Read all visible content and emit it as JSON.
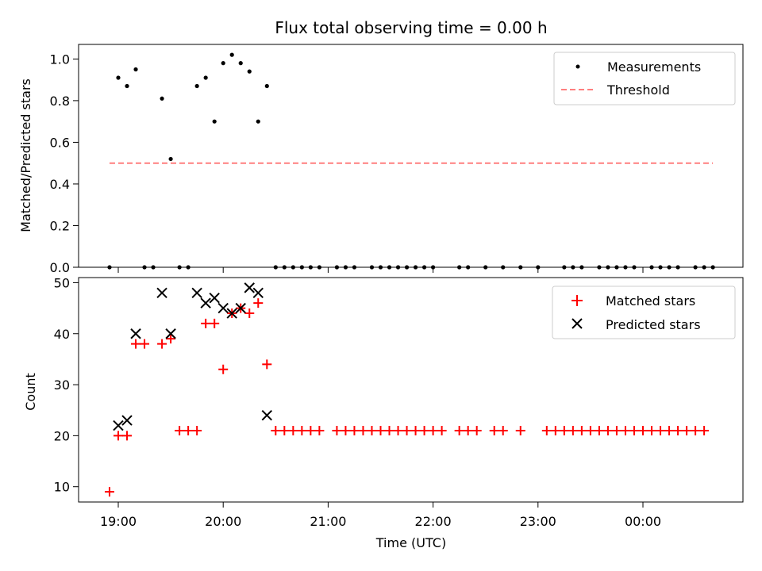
{
  "figure_title": "Flux total observing time = 0.00 h",
  "colors": {
    "measurement": "#000000",
    "threshold": "#ff7f7f",
    "matched": "#ff0000",
    "predicted": "#000000"
  },
  "chart_data": [
    {
      "type": "scatter",
      "ylabel": "Matched/Predicted stars",
      "xlabel": "",
      "ylim": [
        0,
        1.07
      ],
      "yticks": [
        "0.0",
        "0.2",
        "0.4",
        "0.6",
        "0.8",
        "1.0"
      ],
      "legend_position": "top-right",
      "series": [
        {
          "name": "Measurements",
          "marker": "dot",
          "x": [
            "18:55",
            "19:00",
            "19:05",
            "19:10",
            "19:15",
            "19:20",
            "19:25",
            "19:30",
            "19:35",
            "19:40",
            "19:45",
            "19:50",
            "19:55",
            "20:00",
            "20:05",
            "20:10",
            "20:15",
            "20:20",
            "20:25",
            "20:30",
            "20:35",
            "20:40",
            "20:45",
            "20:50",
            "20:55",
            "21:05",
            "21:10",
            "21:15",
            "21:25",
            "21:30",
            "21:35",
            "21:40",
            "21:45",
            "21:50",
            "21:55",
            "22:00",
            "22:15",
            "22:20",
            "22:30",
            "22:40",
            "22:50",
            "23:00",
            "23:15",
            "23:20",
            "23:25",
            "23:35",
            "23:40",
            "23:45",
            "23:50",
            "23:55",
            "00:05",
            "00:10",
            "00:15",
            "00:20",
            "00:30",
            "00:35",
            "00:40"
          ],
          "y": [
            0,
            0.91,
            0.87,
            0.95,
            0,
            0,
            0.81,
            0.52,
            0,
            0,
            0.87,
            0.91,
            0.7,
            0.98,
            1.02,
            0.98,
            0.94,
            0.7,
            0.87,
            0,
            0,
            0,
            0,
            0,
            0,
            0,
            0,
            0,
            0,
            0,
            0,
            0,
            0,
            0,
            0,
            0,
            0,
            0,
            0,
            0,
            0,
            0,
            0,
            0,
            0,
            0,
            0,
            0,
            0,
            0,
            0,
            0,
            0,
            0,
            0,
            0,
            0
          ]
        },
        {
          "name": "Threshold",
          "line": "dashed",
          "x": [
            "18:55",
            "00:40"
          ],
          "y": [
            0.5,
            0.5
          ]
        }
      ]
    },
    {
      "type": "scatter",
      "xlabel": "Time (UTC)",
      "ylabel": "Count",
      "ylim": [
        7,
        51
      ],
      "yticks": [
        "10",
        "20",
        "30",
        "40",
        "50"
      ],
      "xticks": [
        "19:00",
        "20:00",
        "21:00",
        "22:00",
        "23:00",
        "00:00"
      ],
      "legend_position": "top-right",
      "series": [
        {
          "name": "Matched stars",
          "marker": "plus",
          "x": [
            "18:55",
            "19:00",
            "19:05",
            "19:10",
            "19:15",
            "19:25",
            "19:30",
            "19:35",
            "19:40",
            "19:45",
            "19:50",
            "19:55",
            "20:00",
            "20:05",
            "20:10",
            "20:15",
            "20:20",
            "20:25",
            "20:30",
            "20:35",
            "20:40",
            "20:45",
            "20:50",
            "20:55",
            "21:05",
            "21:10",
            "21:15",
            "21:20",
            "21:25",
            "21:30",
            "21:35",
            "21:40",
            "21:45",
            "21:50",
            "21:55",
            "22:00",
            "22:05",
            "22:15",
            "22:20",
            "22:25",
            "22:35",
            "22:40",
            "22:50",
            "23:05",
            "23:10",
            "23:15",
            "23:20",
            "23:25",
            "23:30",
            "23:35",
            "23:40",
            "23:45",
            "23:50",
            "23:55",
            "00:00",
            "00:05",
            "00:10",
            "00:15",
            "00:20",
            "00:25",
            "00:30",
            "00:35"
          ],
          "y": [
            9,
            20,
            20,
            38,
            38,
            38,
            39,
            21,
            21,
            21,
            42,
            42,
            33,
            44,
            45,
            44,
            46,
            34,
            21,
            21,
            21,
            21,
            21,
            21,
            21,
            21,
            21,
            21,
            21,
            21,
            21,
            21,
            21,
            21,
            21,
            21,
            21,
            21,
            21,
            21,
            21,
            21,
            21,
            21,
            21,
            21,
            21,
            21,
            21,
            21,
            21,
            21,
            21,
            21,
            21,
            21,
            21,
            21,
            21,
            21,
            21,
            21
          ]
        },
        {
          "name": "Predicted stars",
          "marker": "x",
          "x": [
            "19:00",
            "19:05",
            "19:10",
            "19:25",
            "19:30",
            "19:45",
            "19:50",
            "19:55",
            "20:00",
            "20:05",
            "20:10",
            "20:15",
            "20:20",
            "20:25"
          ],
          "y": [
            22,
            23,
            40,
            48,
            40,
            48,
            46,
            47,
            45,
            44,
            45,
            49,
            48,
            24
          ]
        }
      ]
    }
  ]
}
